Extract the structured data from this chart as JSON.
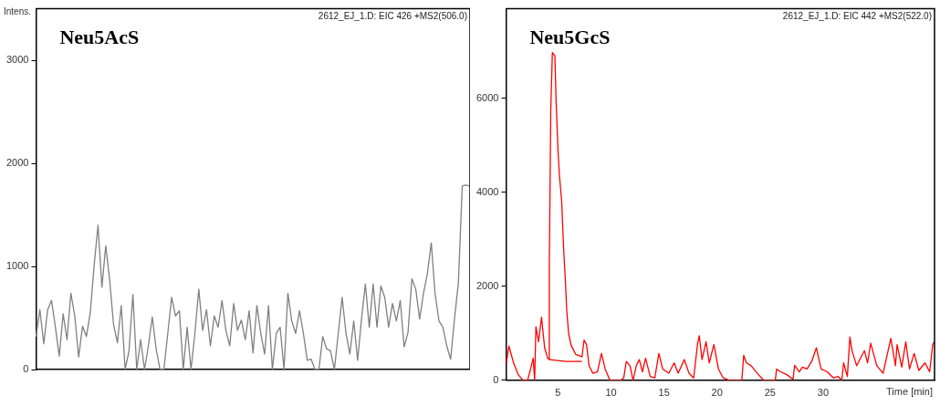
{
  "chart_data": [
    {
      "type": "line",
      "title": "Neu5AcS",
      "subtitle": "2612_EJ_1.D: EIC 426 +MS2(506.0)",
      "ylabel": "Intens.",
      "color": "#808080",
      "marker": "none",
      "tick_labels": "y",
      "categories": [
        null,
        null,
        null,
        null,
        null,
        null,
        null,
        null,
        null,
        null,
        null,
        null,
        null,
        null,
        null,
        null,
        null,
        null,
        null,
        null,
        null,
        null,
        null,
        null,
        null,
        null,
        null,
        null,
        null,
        null,
        null,
        null,
        null,
        null,
        null,
        null,
        null,
        null,
        null,
        null,
        null,
        null,
        null,
        null,
        null,
        null,
        null,
        null,
        null,
        null,
        null,
        null,
        null,
        null,
        null,
        null,
        null,
        null,
        null,
        null,
        null,
        null,
        null,
        null,
        null,
        null,
        null,
        null,
        null,
        null,
        null,
        null,
        null,
        null,
        null,
        null,
        null,
        null,
        null,
        null,
        null,
        null,
        null,
        null,
        null,
        null,
        null,
        null,
        null,
        null,
        null,
        null,
        null,
        null,
        null,
        null,
        null,
        null,
        null,
        null,
        null,
        null,
        null,
        null,
        null,
        null,
        null,
        null,
        null,
        null,
        null,
        null,
        null
      ],
      "values": [
        320,
        580,
        250,
        580,
        670,
        410,
        130,
        540,
        290,
        740,
        520,
        120,
        420,
        320,
        550,
        1010,
        1400,
        800,
        1200,
        870,
        440,
        260,
        620,
        0,
        180,
        730,
        0,
        290,
        0,
        230,
        510,
        200,
        0,
        0,
        350,
        700,
        520,
        570,
        0,
        410,
        0,
        350,
        780,
        380,
        580,
        230,
        520,
        410,
        670,
        380,
        230,
        640,
        380,
        480,
        290,
        570,
        160,
        620,
        350,
        150,
        620,
        0,
        350,
        410,
        0,
        740,
        470,
        350,
        570,
        350,
        90,
        100,
        0,
        0,
        320,
        200,
        180,
        0,
        350,
        700,
        350,
        150,
        470,
        90,
        490,
        830,
        410,
        830,
        410,
        810,
        700,
        410,
        640,
        470,
        670,
        220,
        360,
        880,
        780,
        490,
        740,
        930,
        1230,
        730,
        470,
        410,
        230,
        100,
        490,
        840,
        1780,
        1790,
        1780
      ],
      "ylim": [
        0,
        3500
      ],
      "yticks": [
        0,
        1000,
        2000,
        3000
      ],
      "grid": false
    },
    {
      "type": "line",
      "title": "Neu5GcS",
      "subtitle": "2612_EJ_1.D: EIC 442 +MS2(522.0)",
      "xlabel": "Time [min]",
      "marker": "none",
      "series": [
        {
          "color": "#ff0000",
          "x": [
            0.14,
            0.37,
            0.81,
            1.25,
            1.7,
            2.13,
            2.42,
            2.66,
            2.8,
            2.92,
            3.16,
            3.45,
            3.74,
            4.03,
            4.17,
            4.18,
            4.32,
            4.47,
            4.71,
            4.82,
            5.0,
            5.12,
            5.35,
            5.53,
            5.7,
            5.82,
            6.0,
            6.23,
            6.67,
            7.26,
            7.46,
            7.69,
            7.93,
            8.28,
            8.72,
            9.1,
            9.45,
            9.89,
            10.91,
            11.2,
            11.44,
            11.79,
            12.08,
            12.38,
            12.67,
            12.96,
            13.26,
            13.69,
            14.13,
            14.51,
            14.87,
            15.45,
            15.95,
            16.33,
            16.91,
            17.35,
            17.79,
            18.17,
            18.32,
            18.58,
            18.96,
            19.26,
            19.7,
            20.13,
            20.57,
            21.16,
            22.33,
            22.51,
            22.77,
            23.21,
            23.79,
            24.38,
            25.49,
            25.61,
            25.99,
            26.57,
            27.16,
            27.31,
            27.75,
            28.04,
            28.48,
            28.92,
            29.36,
            29.8,
            30.38,
            30.97,
            31.41,
            31.76,
            31.93,
            32.28,
            32.52,
            32.72,
            33.16,
            33.89,
            34.19,
            34.48,
            35.06,
            35.65,
            36.38,
            36.82,
            36.97,
            37.41,
            37.79,
            38.14,
            38.58,
            39.02,
            39.6,
            40.04,
            40.33,
            40.48
          ],
          "values": [
            370,
            730,
            370,
            120,
            0,
            0,
            240,
            470,
            0,
            1140,
            820,
            1340,
            690,
            470,
            440,
            2370,
            5750,
            6970,
            6900,
            5950,
            4900,
            4400,
            3800,
            2800,
            2100,
            1500,
            1000,
            750,
            550,
            500,
            855,
            760,
            310,
            150,
            180,
            570,
            240,
            0,
            0,
            50,
            400,
            310,
            0,
            310,
            440,
            180,
            470,
            80,
            50,
            570,
            240,
            150,
            370,
            150,
            440,
            150,
            50,
            790,
            950,
            440,
            820,
            370,
            760,
            240,
            50,
            0,
            0,
            530,
            370,
            310,
            150,
            0,
            0,
            240,
            180,
            120,
            20,
            320,
            180,
            280,
            240,
            400,
            690,
            240,
            180,
            50,
            80,
            0,
            370,
            80,
            920,
            630,
            310,
            630,
            370,
            790,
            310,
            150,
            890,
            310,
            760,
            280,
            820,
            240,
            570,
            210,
            370,
            180,
            760,
            820
          ]
        },
        {
          "color": "#ff0000",
          "x": [
            4.18,
            5.7,
            7.26
          ],
          "values": [
            440,
            400,
            400
          ]
        }
      ],
      "xlim": [
        0.1,
        40.5
      ],
      "xticks": [
        5,
        10,
        15,
        20,
        25,
        30
      ],
      "ylim": [
        0,
        7900
      ],
      "yticks": [
        0,
        2000,
        4000,
        6000
      ],
      "grid": false
    }
  ]
}
